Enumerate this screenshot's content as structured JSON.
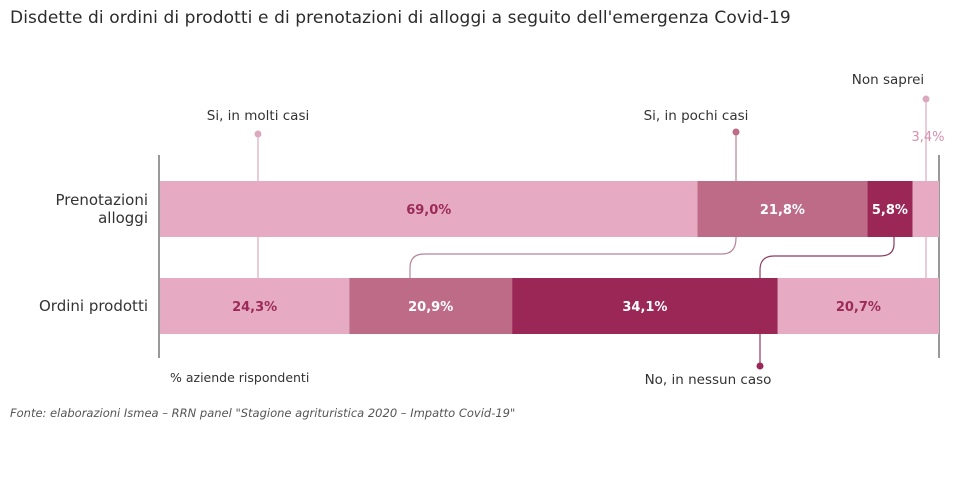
{
  "title": "Disdette di ordini di prodotti e di prenotazioni di alloggi a seguito dell'emergenza Covid-19",
  "source": "Fonte: elaborazioni Ismea – RRN panel \"Stagione agrituristica 2020 – Impatto Covid-19\"",
  "chart_data": {
    "type": "bar",
    "orientation": "horizontal",
    "stacked": true,
    "title": "Disdette di ordini di prodotti e di prenotazioni di alloggi a seguito dell'emergenza Covid-19",
    "xlabel": "% aziende rispondenti",
    "ylabel": "",
    "xlim": [
      0,
      100
    ],
    "categories": [
      "Prenotazioni alloggi",
      "Ordini prodotti"
    ],
    "category_lines": [
      [
        "Prenotazioni",
        "alloggi"
      ],
      [
        "Ordini prodotti"
      ]
    ],
    "series": [
      {
        "name": "Si, in molti casi",
        "color": "#e6abc2",
        "text_color": "#9b2a58",
        "values": [
          69.0,
          24.3
        ],
        "labels": [
          "69,0%",
          "24,3%"
        ]
      },
      {
        "name": "Si, in pochi casi",
        "color": "#bd6b86",
        "text_color": "#ffffff",
        "values": [
          21.8,
          20.9
        ],
        "labels": [
          "21,8%",
          "20,9%"
        ]
      },
      {
        "name": "No, in nessun caso",
        "color": "#9b2756",
        "text_color": "#ffffff",
        "values": [
          5.8,
          34.1
        ],
        "labels": [
          "5,8%",
          "34,1%"
        ]
      },
      {
        "name": "Non saprei",
        "color": "#e6abc2",
        "text_color": "#9b2a58",
        "values": [
          3.4,
          20.7
        ],
        "labels": [
          "3,4%",
          "20,7%"
        ]
      }
    ],
    "callouts": [
      {
        "series": 0,
        "label": "Si, in molti casi",
        "position": "top"
      },
      {
        "series": 1,
        "label": "Si, in pochi casi",
        "position": "top"
      },
      {
        "series": 3,
        "label": "Non saprei",
        "position": "top"
      },
      {
        "series": 2,
        "label": "No, in nessun caso",
        "position": "bottom"
      }
    ],
    "outside_label": {
      "series": 3,
      "category": 0,
      "label": "3,4%",
      "color": "#d98fae"
    },
    "grid": false,
    "legend": "callouts"
  }
}
